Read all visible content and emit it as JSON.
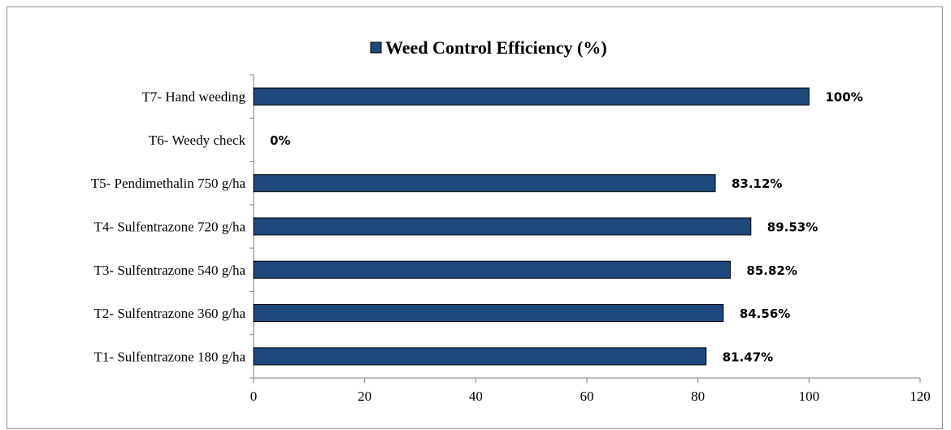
{
  "chart_data": {
    "type": "bar",
    "orientation": "horizontal",
    "title": "",
    "categories": [
      "T1- Sulfentrazone 180 g/ha",
      "T2- Sulfentrazone 360 g/ha",
      "T3- Sulfentrazone 540 g/ha",
      "T4- Sulfentrazone 720 g/ha",
      "T5- Pendimethalin 750 g/ha",
      "T6- Weedy check",
      "T7- Hand weeding"
    ],
    "series": [
      {
        "name": "Weed Control Efficiency (%)",
        "values": [
          81.47,
          84.56,
          85.82,
          89.53,
          83.12,
          0,
          100
        ],
        "data_labels": [
          "81.47%",
          "84.56%",
          "85.82%",
          "89.53%",
          "83.12%",
          "0%",
          "100%"
        ],
        "color": "#1f497d"
      }
    ],
    "xlim": [
      0,
      120
    ],
    "xticks": [
      0,
      20,
      40,
      60,
      80,
      100,
      120
    ],
    "xlabel": "",
    "ylabel": "",
    "grid": false,
    "legend_position": "top"
  }
}
